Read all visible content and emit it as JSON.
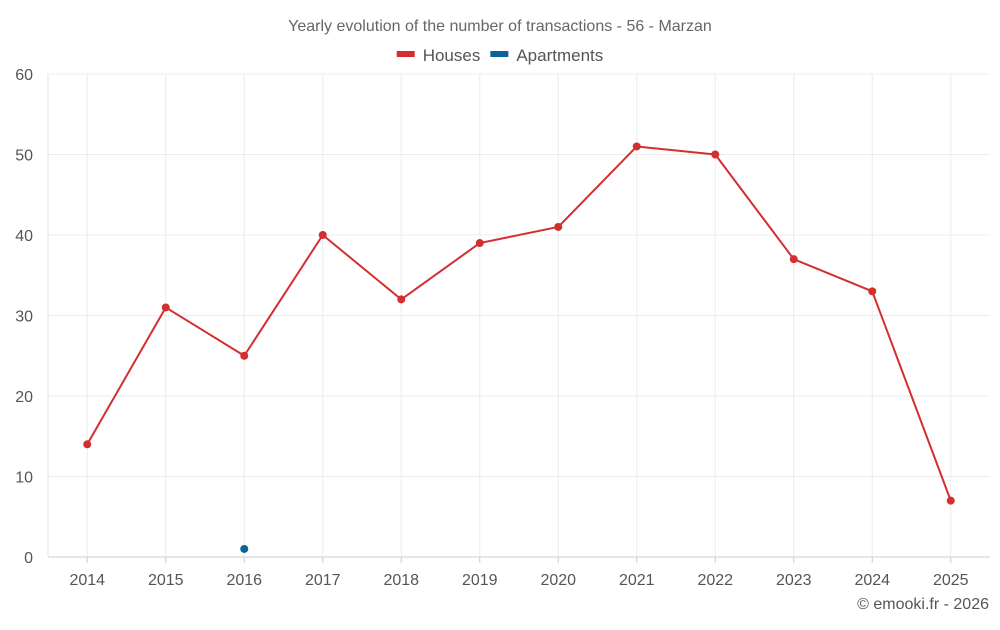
{
  "chart_data": {
    "type": "line",
    "title": "Yearly evolution of the number of transactions - 56 - Marzan",
    "xlabel": "",
    "ylabel": "",
    "categories": [
      "2014",
      "2015",
      "2016",
      "2017",
      "2018",
      "2019",
      "2020",
      "2021",
      "2022",
      "2023",
      "2024",
      "2025"
    ],
    "ylim": [
      0,
      60
    ],
    "yticks": [
      0,
      10,
      20,
      30,
      40,
      50,
      60
    ],
    "grid": true,
    "legend_position": "top-center",
    "series": [
      {
        "name": "Houses",
        "color": "#d32f2f",
        "values": [
          14,
          31,
          25,
          40,
          32,
          39,
          41,
          51,
          50,
          37,
          33,
          7
        ]
      },
      {
        "name": "Apartments",
        "color": "#0d6299",
        "values": [
          null,
          null,
          1,
          null,
          null,
          null,
          null,
          null,
          null,
          null,
          null,
          null
        ]
      }
    ]
  },
  "footer": {
    "credit": "© emooki.fr - 2026"
  }
}
